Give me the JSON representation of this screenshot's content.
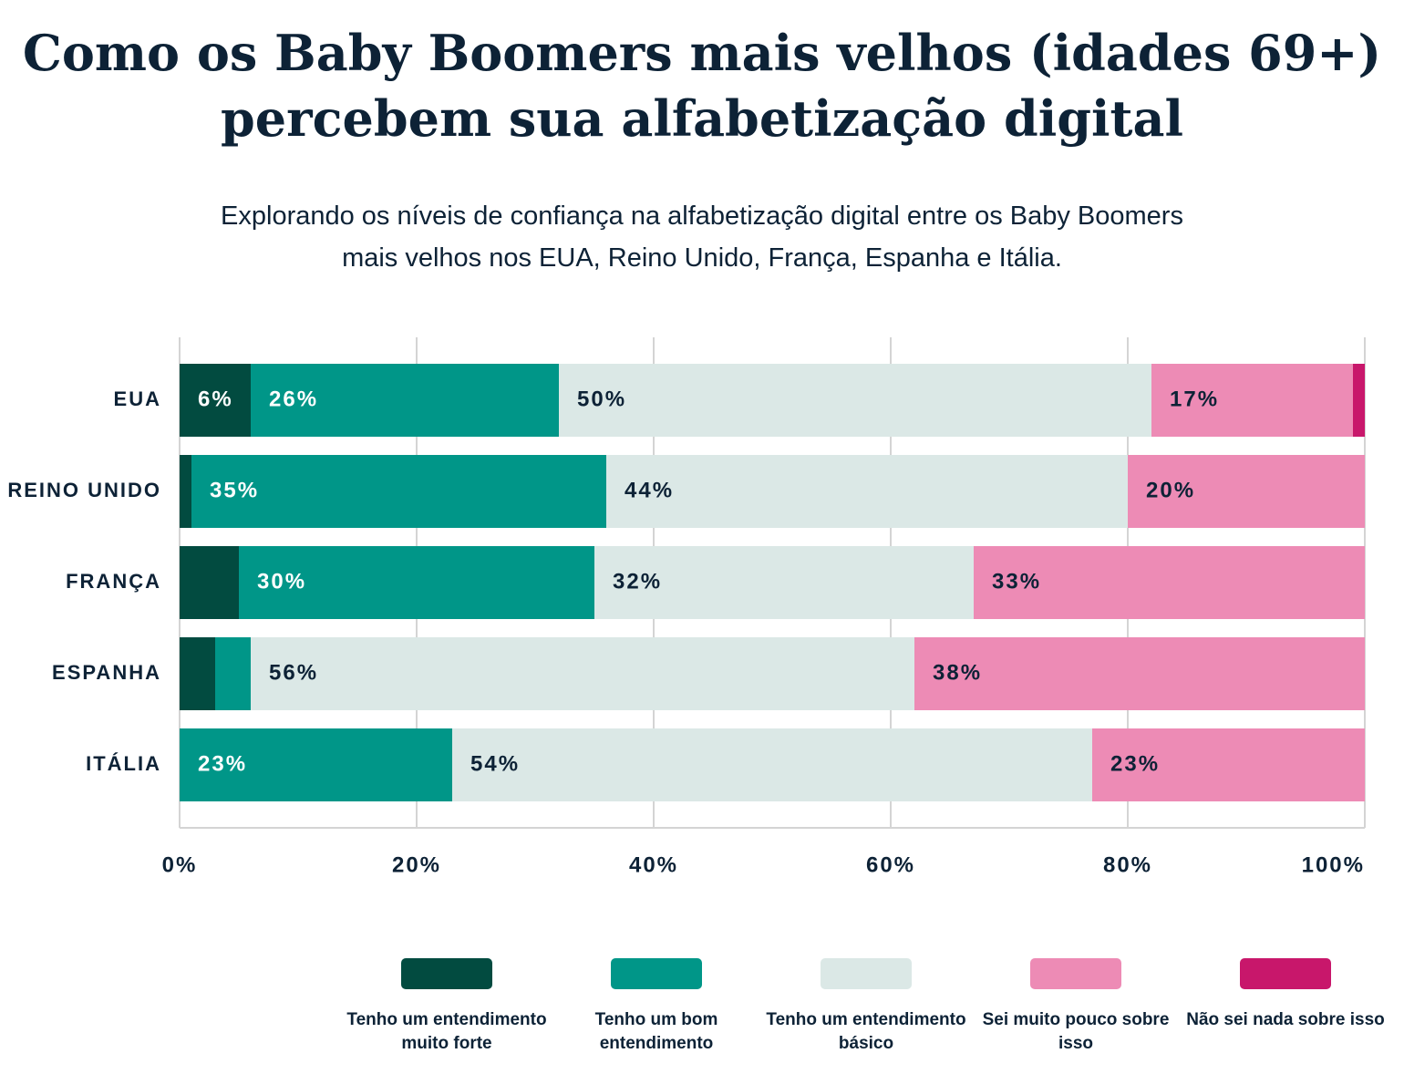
{
  "chart_data": {
    "type": "stacked-bar-horizontal",
    "title": "Como os Baby Boomers mais velhos (idades 69+) percebem sua alfabetização digital",
    "subtitle": "Explorando os níveis de confiança na alfabetização digital entre os Baby Boomers mais velhos nos EUA, Reino Unido, França, Espanha e Itália.",
    "categories": [
      "EUA",
      "REINO UNIDO",
      "FRANÇA",
      "ESPANHA",
      "ITÁLIA"
    ],
    "series": [
      {
        "name": "Tenho um entendimento muito forte",
        "color": "#024b40",
        "values": [
          6,
          1,
          5,
          3,
          0
        ],
        "value_labels": [
          "6%",
          null,
          null,
          null,
          null
        ]
      },
      {
        "name": "Tenho um bom entendimento",
        "color": "#009688",
        "values": [
          26,
          35,
          30,
          3,
          23
        ],
        "value_labels": [
          "26%",
          "35%",
          "30%",
          null,
          "23%"
        ]
      },
      {
        "name": "Tenho um entendimento básico",
        "color": "#dbe8e6",
        "values": [
          50,
          44,
          32,
          56,
          54
        ],
        "value_labels": [
          "50%",
          "44%",
          "32%",
          "56%",
          "54%"
        ]
      },
      {
        "name": "Sei muito pouco sobre isso",
        "color": "#ed8bb5",
        "values": [
          17,
          20,
          33,
          38,
          23
        ],
        "value_labels": [
          "17%",
          "20%",
          "33%",
          "38%",
          "23%"
        ]
      },
      {
        "name": "Não sei nada sobre isso",
        "color": "#c8176b",
        "values": [
          1,
          0,
          0,
          0,
          0
        ],
        "value_labels": [
          null,
          null,
          null,
          null,
          null
        ]
      }
    ],
    "xlim": [
      0,
      100
    ],
    "xticks": [
      {
        "value": 0,
        "label": "0%"
      },
      {
        "value": 20,
        "label": "20%"
      },
      {
        "value": 40,
        "label": "40%"
      },
      {
        "value": 60,
        "label": "60%"
      },
      {
        "value": 80,
        "label": "80%"
      },
      {
        "value": 100,
        "label": "100%"
      }
    ],
    "grid": true
  }
}
